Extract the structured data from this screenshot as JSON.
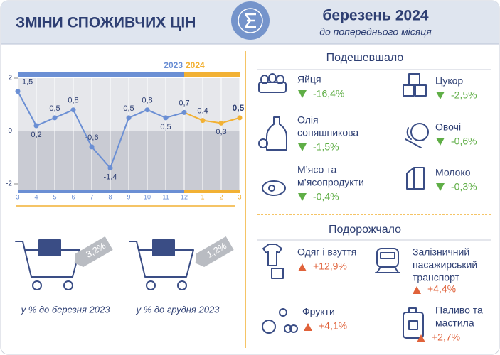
{
  "header": {
    "title": "ЗМІНИ СПОЖИВЧИХ ЦІН",
    "period": "березень 2024",
    "comparison": "до попереднього місяця"
  },
  "chart_data": {
    "type": "line",
    "categories": [
      "3",
      "4",
      "5",
      "6",
      "7",
      "8",
      "9",
      "10",
      "11",
      "12",
      "1",
      "2",
      "3"
    ],
    "series": [
      {
        "name": "2023",
        "color": "#6b8fd4",
        "values": [
          1.5,
          0.2,
          0.5,
          0.8,
          -0.6,
          -1.4,
          0.5,
          0.8,
          0.5,
          0.7,
          null,
          null,
          null
        ],
        "value_labels": [
          "1,5",
          "0,2",
          "0,5",
          "0,8",
          "-0,6",
          "-1,4",
          "0,5",
          "0,8",
          "0,5",
          "0,7",
          null,
          null,
          null
        ]
      },
      {
        "name": "2024",
        "color": "#f2b134",
        "values": [
          null,
          null,
          null,
          null,
          null,
          null,
          null,
          null,
          null,
          null,
          0.4,
          0.3,
          0.5
        ],
        "value_labels": [
          null,
          null,
          null,
          null,
          null,
          null,
          null,
          null,
          null,
          null,
          "0,4",
          "0,3",
          "0,5"
        ]
      }
    ],
    "ylim": [
      -2,
      2
    ],
    "yticks": [
      -2,
      0,
      2
    ],
    "grid": true
  },
  "cheaper": {
    "title": "Подешевшало",
    "items": [
      {
        "name": [
          "Яйця"
        ],
        "change": "-16,4%"
      },
      {
        "name": [
          "Цукор"
        ],
        "change": "-2,5%"
      },
      {
        "name": [
          "Олія",
          "соняшникова"
        ],
        "change": "-1,5%"
      },
      {
        "name": [
          "Овочі"
        ],
        "change": "-0,6%"
      },
      {
        "name": [
          "М’ясо та",
          "м’ясопродукти"
        ],
        "change": "-0,4%"
      },
      {
        "name": [
          "Молоко"
        ],
        "change": "-0,3%"
      }
    ]
  },
  "pricier": {
    "title": "Подорожчало",
    "items": [
      {
        "name": [
          "Одяг і взуття"
        ],
        "change": "+12,9%"
      },
      {
        "name": [
          "Залізничний",
          "пасажирський",
          "транспорт"
        ],
        "change": "+4,4%"
      },
      {
        "name": [
          "Фрукти"
        ],
        "change": "+4,1%"
      },
      {
        "name": [
          "Паливо та",
          "мастила"
        ],
        "change": "+2,7%"
      }
    ]
  },
  "annual": [
    {
      "value": "3,2%",
      "caption": "у % до березня 2023"
    },
    {
      "value": "1,2%",
      "caption": "у % до грудня 2023"
    }
  ]
}
